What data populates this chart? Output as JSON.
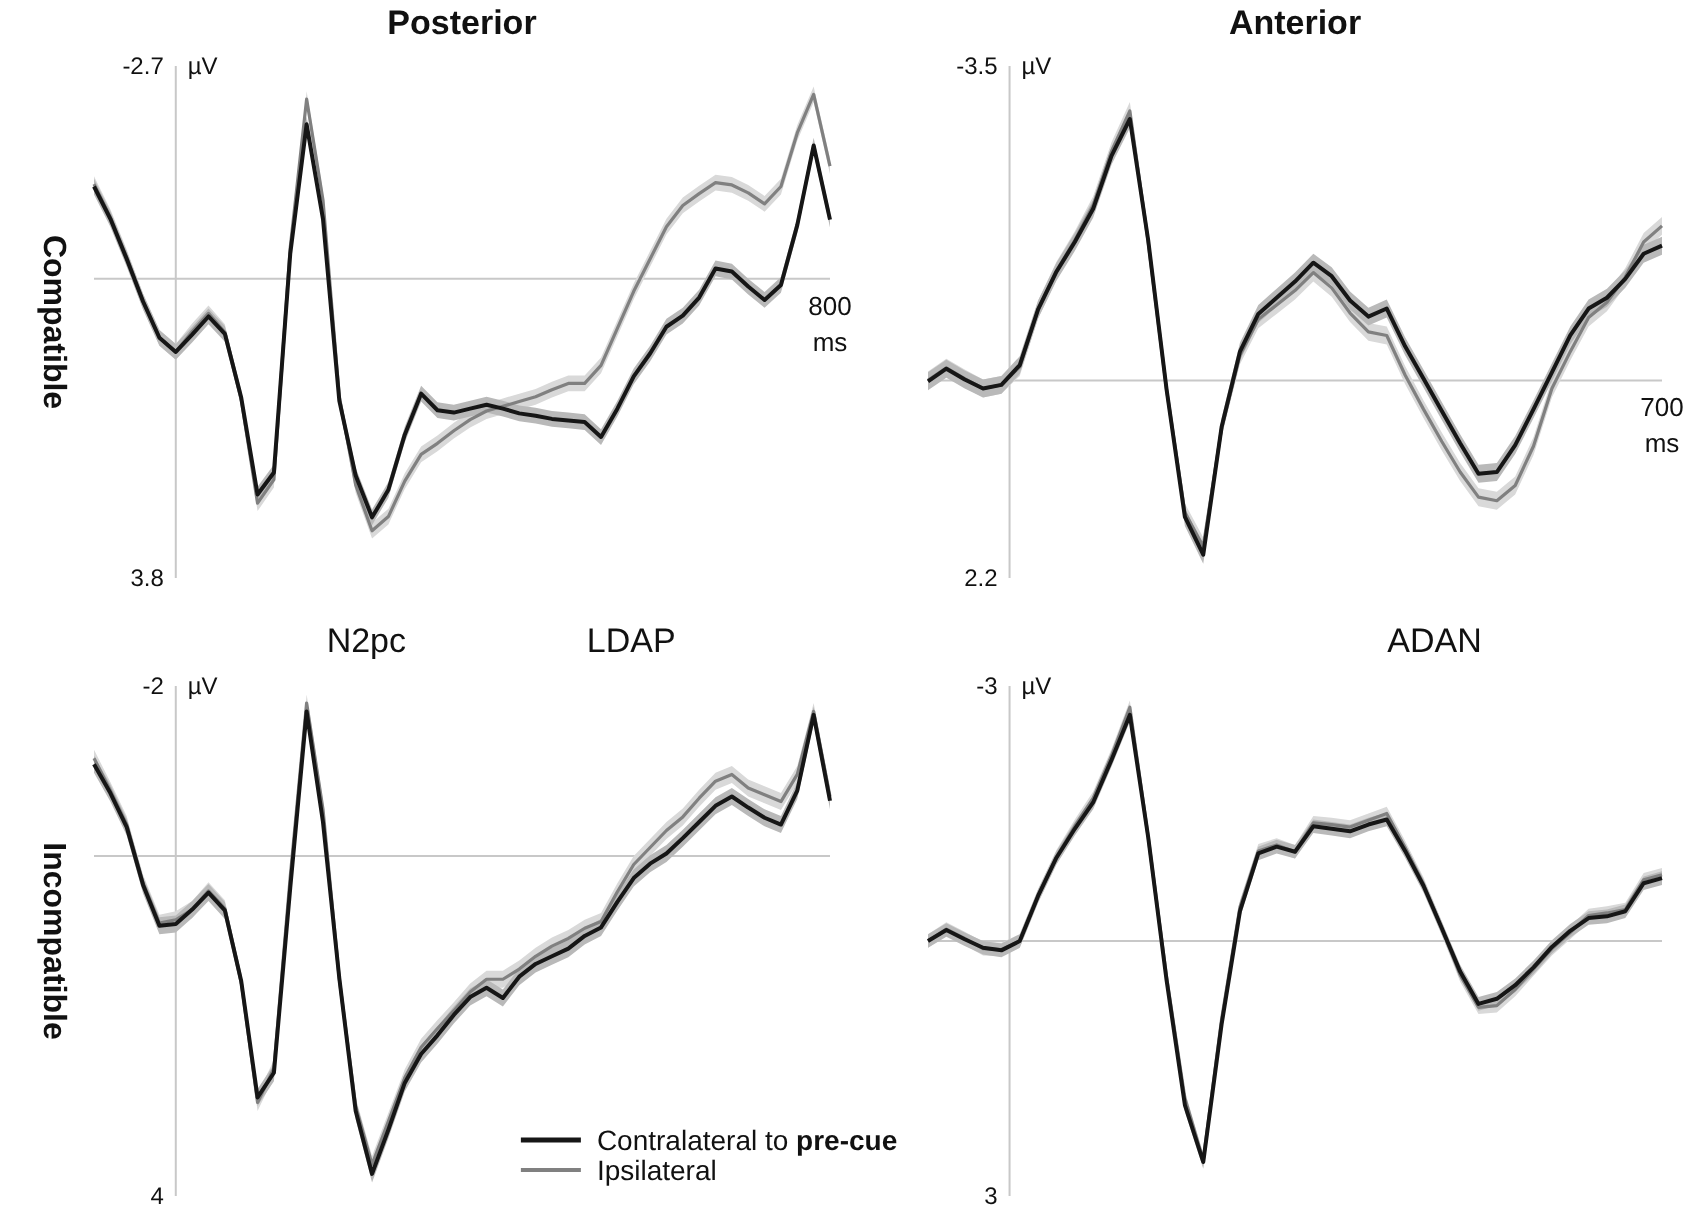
{
  "chart_data": [
    {
      "type": "line",
      "title": "Posterior",
      "ylabel": "µV",
      "annotations": [
        "Compatible",
        "800",
        "ms"
      ],
      "ylim": [
        3.8,
        -2.7
      ],
      "yticks": [
        -2.7,
        3.8
      ],
      "categories": [
        null,
        null,
        null,
        null,
        null,
        null,
        null,
        null,
        null,
        null,
        null,
        null,
        null,
        null,
        null,
        null,
        null,
        null,
        null,
        null,
        null,
        null,
        null,
        null,
        null,
        null,
        null,
        null,
        null,
        null,
        null,
        null,
        null,
        null,
        null,
        null,
        null,
        null,
        null,
        null,
        null,
        null,
        null,
        null,
        null,
        null
      ],
      "series": [
        {
          "color": "#161616",
          "values": [
            -1.17,
            -0.76,
            -0.25,
            0.29,
            0.75,
            0.93,
            0.71,
            0.48,
            0.7,
            1.51,
            2.74,
            2.46,
            -0.32,
            -1.96,
            -0.76,
            1.55,
            2.5,
            3.03,
            2.68,
            1.98,
            1.46,
            1.67,
            1.7,
            1.65,
            1.6,
            1.65,
            1.71,
            1.74,
            1.78,
            1.8,
            1.82,
            2.01,
            1.65,
            1.24,
            0.95,
            0.61,
            0.47,
            0.24,
            -0.13,
            -0.09,
            0.1,
            0.27,
            0.08,
            -0.68,
            -1.69,
            -0.75
          ],
          "lower": [
            -1.27,
            -0.86,
            -0.35,
            0.19,
            0.65,
            0.83,
            0.61,
            0.38,
            0.6,
            1.41,
            2.64,
            2.36,
            -0.42,
            -2.06,
            -0.86,
            1.45,
            2.4,
            2.93,
            2.58,
            1.88,
            1.36,
            1.57,
            1.6,
            1.55,
            1.5,
            1.55,
            1.61,
            1.64,
            1.68,
            1.7,
            1.72,
            1.91,
            1.55,
            1.14,
            0.85,
            0.51,
            0.37,
            0.14,
            -0.23,
            -0.19,
            0,
            0.17,
            -0.02,
            -0.78,
            -1.79,
            -0.85
          ],
          "upper": [
            -1.07,
            -0.66,
            -0.15,
            0.39,
            0.85,
            1.03,
            0.81,
            0.58,
            0.8,
            1.61,
            2.84,
            2.56,
            -0.22,
            -1.86,
            -0.66,
            1.65,
            2.6,
            3.13,
            2.78,
            2.08,
            1.56,
            1.77,
            1.8,
            1.75,
            1.7,
            1.75,
            1.81,
            1.84,
            1.88,
            1.9,
            1.92,
            2.11,
            1.75,
            1.34,
            1.05,
            0.71,
            0.57,
            0.34,
            -0.03,
            0.01,
            0.2,
            0.37,
            0.18,
            -0.58,
            -1.59,
            -0.65
          ]
        },
        {
          "color": "#808080",
          "values": [
            -1.2,
            -0.78,
            -0.27,
            0.29,
            0.75,
            0.93,
            0.67,
            0.44,
            0.68,
            1.53,
            2.85,
            2.55,
            -0.4,
            -2.28,
            -1.0,
            1.5,
            2.62,
            3.2,
            3.02,
            2.57,
            2.23,
            2.09,
            1.93,
            1.79,
            1.68,
            1.62,
            1.56,
            1.5,
            1.41,
            1.33,
            1.33,
            1.1,
            0.63,
            0.16,
            -0.25,
            -0.66,
            -0.93,
            -1.08,
            -1.22,
            -1.19,
            -1.09,
            -0.95,
            -1.17,
            -1.85,
            -2.34,
            -1.43
          ],
          "lower": [
            -1.3,
            -0.88,
            -0.37,
            0.19,
            0.65,
            0.83,
            0.57,
            0.34,
            0.58,
            1.43,
            2.75,
            2.45,
            -0.5,
            -2.38,
            -1.1,
            1.4,
            2.52,
            3.1,
            2.92,
            2.47,
            2.13,
            1.99,
            1.83,
            1.69,
            1.58,
            1.52,
            1.46,
            1.4,
            1.31,
            1.23,
            1.23,
            1.0,
            0.53,
            0.06,
            -0.35,
            -0.76,
            -1.03,
            -1.18,
            -1.32,
            -1.29,
            -1.19,
            -1.05,
            -1.27,
            -1.95,
            -2.44,
            -1.53
          ],
          "upper": [
            -1.1,
            -0.68,
            -0.17,
            0.39,
            0.85,
            1.03,
            0.77,
            0.54,
            0.78,
            1.63,
            2.95,
            2.65,
            -0.3,
            -2.18,
            -0.9,
            1.6,
            2.72,
            3.3,
            3.12,
            2.67,
            2.33,
            2.19,
            2.03,
            1.89,
            1.78,
            1.72,
            1.66,
            1.6,
            1.51,
            1.43,
            1.43,
            1.2,
            0.73,
            0.26,
            -0.15,
            -0.56,
            -0.83,
            -0.98,
            -1.12,
            -1.09,
            -0.99,
            -0.85,
            -1.07,
            -1.75,
            -2.24,
            -1.33
          ]
        }
      ]
    },
    {
      "type": "line",
      "title": "Anterior",
      "ylabel": "µV",
      "annotations": [
        "700",
        "ms"
      ],
      "ylim": [
        2.2,
        -3.5
      ],
      "yticks": [
        -3.5,
        2.2
      ],
      "categories": [
        null,
        null,
        null,
        null,
        null,
        null,
        null,
        null,
        null,
        null,
        null,
        null,
        null,
        null,
        null,
        null,
        null,
        null,
        null,
        null,
        null,
        null,
        null,
        null,
        null,
        null,
        null,
        null,
        null,
        null,
        null,
        null,
        null,
        null,
        null,
        null,
        null,
        null,
        null,
        null,
        null
      ],
      "series": [
        {
          "color": "#161616",
          "values": [
            0.01,
            -0.13,
            -0.01,
            0.09,
            0.05,
            -0.17,
            -0.79,
            -1.21,
            -1.54,
            -1.91,
            -2.5,
            -2.91,
            -1.56,
            0.1,
            1.52,
            1.94,
            0.52,
            -0.32,
            -0.74,
            -0.92,
            -1.1,
            -1.31,
            -1.16,
            -0.89,
            -0.71,
            -0.8,
            -0.38,
            -0.02,
            0.34,
            0.7,
            1.04,
            1.02,
            0.72,
            0.32,
            -0.09,
            -0.5,
            -0.8,
            -0.92,
            -1.13,
            -1.41,
            -1.5
          ],
          "lower": [
            -0.09,
            -0.23,
            -0.11,
            -0.01,
            -0.05,
            -0.27,
            -0.89,
            -1.31,
            -1.64,
            -2.01,
            -2.6,
            -3.01,
            -1.66,
            0,
            1.42,
            1.84,
            0.42,
            -0.42,
            -0.84,
            -1.02,
            -1.2,
            -1.41,
            -1.26,
            -0.99,
            -0.81,
            -0.9,
            -0.48,
            -0.12,
            0.24,
            0.6,
            0.94,
            0.92,
            0.62,
            0.22,
            -0.19,
            -0.6,
            -0.9,
            -1.02,
            -1.23,
            -1.51,
            -1.6
          ],
          "upper": [
            0.11,
            -0.03,
            0.09,
            0.19,
            0.15,
            -0.07,
            -0.69,
            -1.11,
            -1.44,
            -1.81,
            -2.4,
            -2.81,
            -1.46,
            0.2,
            1.62,
            2.04,
            0.62,
            -0.22,
            -0.64,
            -0.82,
            -1.0,
            -1.21,
            -1.06,
            -0.79,
            -0.61,
            -0.7,
            -0.28,
            0.08,
            0.44,
            0.8,
            1.14,
            1.12,
            0.82,
            0.42,
            0.01,
            -0.4,
            -0.7,
            -0.82,
            -1.03,
            -1.31,
            -1.4
          ]
        },
        {
          "color": "#808080",
          "values": [
            0,
            -0.14,
            -0.02,
            0.09,
            0.05,
            -0.15,
            -0.79,
            -1.22,
            -1.56,
            -1.95,
            -2.55,
            -3.0,
            -1.54,
            0.1,
            1.47,
            1.85,
            0.53,
            -0.28,
            -0.68,
            -0.84,
            -1.0,
            -1.2,
            -1.03,
            -0.75,
            -0.54,
            -0.5,
            -0.06,
            0.32,
            0.68,
            1.02,
            1.3,
            1.34,
            1.17,
            0.73,
            0.09,
            -0.32,
            -0.7,
            -0.87,
            -1.15,
            -1.54,
            -1.72
          ],
          "lower": [
            -0.1,
            -0.24,
            -0.12,
            -0.01,
            -0.05,
            -0.25,
            -0.89,
            -1.32,
            -1.66,
            -2.05,
            -2.65,
            -3.1,
            -1.64,
            0,
            1.37,
            1.75,
            0.43,
            -0.38,
            -0.78,
            -0.94,
            -1.1,
            -1.3,
            -1.13,
            -0.85,
            -0.64,
            -0.6,
            -0.16,
            0.22,
            0.58,
            0.92,
            1.2,
            1.24,
            1.07,
            0.63,
            -0.01,
            -0.42,
            -0.8,
            -0.97,
            -1.25,
            -1.64,
            -1.82
          ],
          "upper": [
            0.1,
            -0.04,
            0.08,
            0.19,
            0.15,
            -0.05,
            -0.69,
            -1.12,
            -1.46,
            -1.85,
            -2.45,
            -2.9,
            -1.44,
            0.2,
            1.57,
            1.95,
            0.63,
            -0.18,
            -0.58,
            -0.74,
            -0.9,
            -1.1,
            -0.93,
            -0.65,
            -0.44,
            -0.4,
            0.04,
            0.42,
            0.78,
            1.12,
            1.4,
            1.44,
            1.27,
            0.83,
            0.19,
            -0.22,
            -0.6,
            -0.77,
            -1.05,
            -1.44,
            -1.62
          ]
        }
      ]
    },
    {
      "type": "line",
      "ylabel": "µV",
      "annotations": [
        "Incompatible",
        "N2pc",
        "LDAP"
      ],
      "ylim": [
        4,
        -2
      ],
      "yticks": [
        -2,
        4
      ],
      "legend": "bottom right",
      "categories": [
        null,
        null,
        null,
        null,
        null,
        null,
        null,
        null,
        null,
        null,
        null,
        null,
        null,
        null,
        null,
        null,
        null,
        null,
        null,
        null,
        null,
        null,
        null,
        null,
        null,
        null,
        null,
        null,
        null,
        null,
        null,
        null,
        null,
        null,
        null,
        null,
        null,
        null,
        null,
        null,
        null,
        null,
        null,
        null,
        null,
        null
      ],
      "series": [
        {
          "name": "Contralateral to pre-cue",
          "color": "#161616",
          "values": [
            -1.08,
            -0.74,
            -0.34,
            0.34,
            0.82,
            0.8,
            0.63,
            0.43,
            0.64,
            1.47,
            2.84,
            2.55,
            0.37,
            -1.7,
            -0.4,
            1.44,
            3.0,
            3.74,
            3.22,
            2.67,
            2.33,
            2.11,
            1.87,
            1.66,
            1.55,
            1.67,
            1.42,
            1.27,
            1.18,
            1.09,
            0.94,
            0.84,
            0.54,
            0.26,
            0.09,
            -0.03,
            -0.21,
            -0.4,
            -0.59,
            -0.7,
            -0.57,
            -0.45,
            -0.37,
            -0.77,
            -1.66,
            -0.65
          ],
          "lower": [
            -1.18,
            -0.84,
            -0.44,
            0.24,
            0.72,
            0.7,
            0.53,
            0.33,
            0.54,
            1.37,
            2.74,
            2.45,
            0.27,
            -1.8,
            -0.5,
            1.34,
            2.9,
            3.64,
            3.12,
            2.57,
            2.23,
            2.01,
            1.77,
            1.56,
            1.45,
            1.57,
            1.32,
            1.17,
            1.08,
            0.99,
            0.84,
            0.74,
            0.44,
            0.16,
            -0.01,
            -0.13,
            -0.31,
            -0.5,
            -0.69,
            -0.8,
            -0.67,
            -0.55,
            -0.47,
            -0.87,
            -1.76,
            -0.75
          ],
          "upper": [
            -0.98,
            -0.64,
            -0.24,
            0.44,
            0.92,
            0.9,
            0.73,
            0.53,
            0.74,
            1.57,
            2.94,
            2.65,
            0.47,
            -1.6,
            -0.3,
            1.54,
            3.1,
            3.84,
            3.32,
            2.77,
            2.43,
            2.21,
            1.97,
            1.76,
            1.65,
            1.77,
            1.52,
            1.37,
            1.28,
            1.19,
            1.04,
            0.94,
            0.64,
            0.36,
            0.19,
            0.07,
            -0.11,
            -0.3,
            -0.49,
            -0.6,
            -0.47,
            -0.35,
            -0.27,
            -0.67,
            -1.56,
            -0.55
          ]
        },
        {
          "name": "Ipsilateral",
          "color": "#808080",
          "values": [
            -1.15,
            -0.77,
            -0.37,
            0.32,
            0.79,
            0.75,
            0.63,
            0.41,
            0.62,
            1.48,
            2.9,
            2.5,
            0.24,
            -1.8,
            -0.55,
            1.45,
            2.94,
            3.63,
            3.12,
            2.61,
            2.25,
            2.03,
            1.82,
            1.6,
            1.45,
            1.45,
            1.33,
            1.18,
            1.06,
            0.97,
            0.85,
            0.77,
            0.42,
            0.1,
            -0.1,
            -0.3,
            -0.46,
            -0.68,
            -0.88,
            -0.96,
            -0.8,
            -0.72,
            -0.64,
            -0.96,
            -1.7,
            -0.7
          ],
          "lower": [
            -1.25,
            -0.87,
            -0.47,
            0.22,
            0.69,
            0.65,
            0.53,
            0.31,
            0.52,
            1.38,
            2.8,
            2.4,
            0.14,
            -1.9,
            -0.65,
            1.35,
            2.84,
            3.53,
            3.02,
            2.51,
            2.15,
            1.93,
            1.72,
            1.5,
            1.35,
            1.35,
            1.23,
            1.08,
            0.96,
            0.87,
            0.75,
            0.67,
            0.32,
            0,
            -0.2,
            -0.4,
            -0.56,
            -0.78,
            -0.98,
            -1.06,
            -0.9,
            -0.82,
            -0.74,
            -1.06,
            -1.8,
            -0.8
          ],
          "upper": [
            -1.05,
            -0.67,
            -0.27,
            0.42,
            0.89,
            0.85,
            0.73,
            0.51,
            0.72,
            1.58,
            3.0,
            2.6,
            0.34,
            -1.7,
            -0.45,
            1.55,
            3.04,
            3.73,
            3.22,
            2.71,
            2.35,
            2.13,
            1.92,
            1.7,
            1.55,
            1.55,
            1.43,
            1.28,
            1.16,
            1.07,
            0.95,
            0.87,
            0.52,
            0.2,
            0,
            -0.2,
            -0.36,
            -0.58,
            -0.78,
            -0.86,
            -0.7,
            -0.62,
            -0.54,
            -0.86,
            -1.6,
            -0.6
          ]
        }
      ]
    },
    {
      "type": "line",
      "ylabel": "µV",
      "annotations": [
        "ADAN"
      ],
      "ylim": [
        3,
        -3
      ],
      "yticks": [
        -3,
        3
      ],
      "categories": [
        null,
        null,
        null,
        null,
        null,
        null,
        null,
        null,
        null,
        null,
        null,
        null,
        null,
        null,
        null,
        null,
        null,
        null,
        null,
        null,
        null,
        null,
        null,
        null,
        null,
        null,
        null,
        null,
        null,
        null,
        null,
        null,
        null,
        null,
        null,
        null,
        null,
        null,
        null,
        null,
        null
      ],
      "series": [
        {
          "color": "#161616",
          "values": [
            0,
            -0.13,
            -0.02,
            0.08,
            0.11,
            0,
            -0.53,
            -0.98,
            -1.32,
            -1.63,
            -2.13,
            -2.66,
            -1.22,
            0.46,
            1.93,
            2.6,
            0.98,
            -0.35,
            -1.03,
            -1.11,
            -1.05,
            -1.35,
            -1.32,
            -1.29,
            -1.37,
            -1.43,
            -1.06,
            -0.65,
            -0.15,
            0.36,
            0.74,
            0.68,
            0.52,
            0.31,
            0.07,
            -0.12,
            -0.27,
            -0.29,
            -0.35,
            -0.68,
            -0.74
          ],
          "lower": [
            -0.08,
            -0.21,
            -0.1,
            0,
            0.03,
            -0.08,
            -0.61,
            -1.06,
            -1.4,
            -1.71,
            -2.21,
            -2.74,
            -1.3,
            0.38,
            1.85,
            2.52,
            0.9,
            -0.43,
            -1.11,
            -1.19,
            -1.13,
            -1.43,
            -1.4,
            -1.37,
            -1.45,
            -1.51,
            -1.14,
            -0.73,
            -0.23,
            0.28,
            0.66,
            0.6,
            0.44,
            0.23,
            -0.01,
            -0.2,
            -0.35,
            -0.37,
            -0.43,
            -0.76,
            -0.82
          ],
          "upper": [
            0.08,
            -0.05,
            0.06,
            0.16,
            0.19,
            0.08,
            -0.45,
            -0.9,
            -1.24,
            -1.55,
            -2.05,
            -2.58,
            -1.14,
            0.54,
            2.01,
            2.68,
            1.06,
            -0.27,
            -0.95,
            -1.03,
            -0.97,
            -1.27,
            -1.24,
            -1.21,
            -1.29,
            -1.35,
            -0.98,
            -0.57,
            -0.07,
            0.44,
            0.82,
            0.76,
            0.6,
            0.39,
            0.15,
            -0.04,
            -0.19,
            -0.21,
            -0.27,
            -0.6,
            -0.66
          ]
        },
        {
          "color": "#808080",
          "values": [
            0,
            -0.14,
            -0.03,
            0.09,
            0.1,
            0,
            -0.53,
            -0.99,
            -1.35,
            -1.68,
            -2.18,
            -2.75,
            -1.22,
            0.42,
            1.85,
            2.58,
            0.92,
            -0.4,
            -1.06,
            -1.13,
            -1.05,
            -1.39,
            -1.37,
            -1.34,
            -1.42,
            -1.5,
            -1.1,
            -0.67,
            -0.15,
            0.4,
            0.78,
            0.76,
            0.57,
            0.33,
            0.09,
            -0.1,
            -0.3,
            -0.33,
            -0.37,
            -0.72,
            -0.78
          ],
          "lower": [
            -0.08,
            -0.22,
            -0.11,
            0.01,
            0.02,
            -0.08,
            -0.61,
            -1.07,
            -1.43,
            -1.76,
            -2.26,
            -2.83,
            -1.3,
            0.34,
            1.77,
            2.5,
            0.84,
            -0.48,
            -1.14,
            -1.21,
            -1.13,
            -1.47,
            -1.45,
            -1.42,
            -1.5,
            -1.58,
            -1.18,
            -0.75,
            -0.23,
            0.32,
            0.7,
            0.68,
            0.49,
            0.25,
            0.01,
            -0.18,
            -0.38,
            -0.41,
            -0.45,
            -0.8,
            -0.86
          ],
          "upper": [
            0.08,
            -0.06,
            0.05,
            0.17,
            0.18,
            0.08,
            -0.45,
            -0.91,
            -1.27,
            -1.6,
            -2.1,
            -2.67,
            -1.14,
            0.5,
            1.93,
            2.66,
            1.0,
            -0.32,
            -0.98,
            -1.05,
            -0.97,
            -1.31,
            -1.29,
            -1.26,
            -1.34,
            -1.42,
            -1.02,
            -0.59,
            -0.07,
            0.48,
            0.86,
            0.84,
            0.65,
            0.41,
            0.17,
            -0.02,
            -0.22,
            -0.25,
            -0.29,
            -0.64,
            -0.7
          ]
        }
      ]
    }
  ]
}
